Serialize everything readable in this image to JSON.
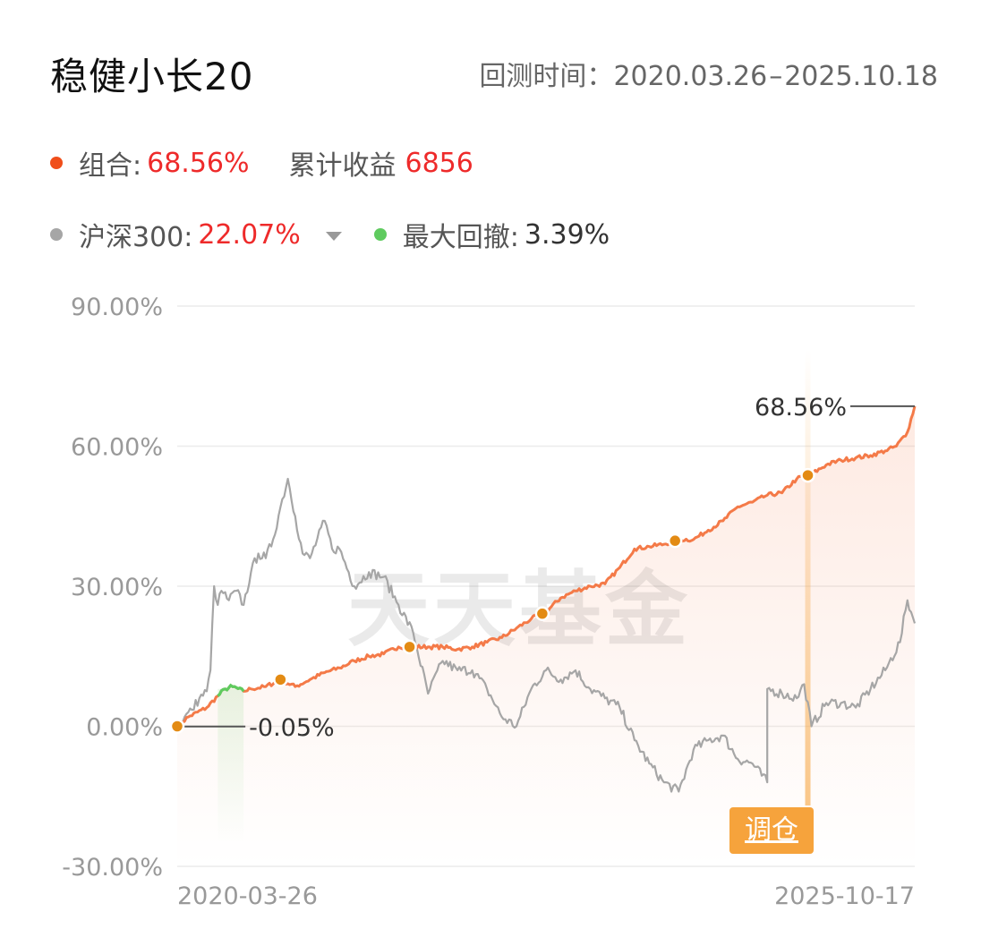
{
  "header": {
    "title": "稳健小长20",
    "period_label": "回测时间：",
    "period_start": "2020.03.26",
    "period_sep": "–",
    "period_end": "2025.10.18"
  },
  "legend": {
    "portfolio_label": "组合:",
    "portfolio_value": "68.56%",
    "cum_label": "累计收益",
    "cum_value": "6856",
    "benchmark_label": "沪深300:",
    "benchmark_value": "22.07%",
    "drawdown_label": "最大回撤:",
    "drawdown_value": "3.39%"
  },
  "colors": {
    "portfolio": "#f47a48",
    "portfolio_dot": "#f04e1a",
    "benchmark": "#a6a6a6",
    "drawdown": "#5fcb5f",
    "marker": "#e38b14",
    "rebalance": "#f6a33c",
    "value_red": "#ee2a2a"
  },
  "watermark": "天天基金",
  "rebalance_label": "调仓",
  "chart_data": {
    "type": "line",
    "title": "",
    "xlabel": "",
    "ylabel": "",
    "x_start": "2020-03-26",
    "x_end": "2025-10-17",
    "xtick_labels": [
      "2020-03-26",
      "2025-10-17"
    ],
    "ylim": [
      -30,
      90
    ],
    "yticks": [
      "90.00%",
      "60.00%",
      "30.00%",
      "0.00%",
      "-30.00%"
    ],
    "ytick_values": [
      90,
      60,
      30,
      0,
      -30
    ],
    "grid": true,
    "series": [
      {
        "name": "组合",
        "points": [
          [
            0,
            0
          ],
          [
            0.015,
            2
          ],
          [
            0.04,
            4
          ],
          [
            0.055,
            6.5
          ],
          [
            0.065,
            8
          ],
          [
            0.075,
            8.5
          ],
          [
            0.09,
            7.5
          ],
          [
            0.1,
            8
          ],
          [
            0.12,
            8.5
          ],
          [
            0.14,
            10
          ],
          [
            0.16,
            8.5
          ],
          [
            0.18,
            10
          ],
          [
            0.2,
            11.5
          ],
          [
            0.22,
            12.5
          ],
          [
            0.24,
            14
          ],
          [
            0.26,
            15
          ],
          [
            0.28,
            15.5
          ],
          [
            0.3,
            17
          ],
          [
            0.32,
            17
          ],
          [
            0.34,
            17
          ],
          [
            0.36,
            17
          ],
          [
            0.38,
            16.5
          ],
          [
            0.4,
            17
          ],
          [
            0.42,
            18
          ],
          [
            0.44,
            19
          ],
          [
            0.46,
            21
          ],
          [
            0.48,
            23
          ],
          [
            0.5,
            24.5
          ],
          [
            0.52,
            27.5
          ],
          [
            0.54,
            29
          ],
          [
            0.56,
            30
          ],
          [
            0.58,
            30.5
          ],
          [
            0.6,
            34
          ],
          [
            0.62,
            38
          ],
          [
            0.64,
            38.5
          ],
          [
            0.66,
            39
          ],
          [
            0.68,
            40
          ],
          [
            0.7,
            40
          ],
          [
            0.72,
            42
          ],
          [
            0.74,
            44
          ],
          [
            0.76,
            47
          ],
          [
            0.78,
            48
          ],
          [
            0.8,
            49.5
          ],
          [
            0.82,
            50
          ],
          [
            0.84,
            53
          ],
          [
            0.86,
            54
          ],
          [
            0.88,
            56
          ],
          [
            0.9,
            57
          ],
          [
            0.92,
            57.5
          ],
          [
            0.94,
            58
          ],
          [
            0.96,
            59
          ],
          [
            0.975,
            60
          ],
          [
            0.99,
            63
          ],
          [
            1.0,
            68.56
          ]
        ]
      },
      {
        "name": "沪深300",
        "points": [
          [
            0,
            0
          ],
          [
            0.01,
            2
          ],
          [
            0.02,
            3.5
          ],
          [
            0.03,
            6
          ],
          [
            0.04,
            7.5
          ],
          [
            0.045,
            12
          ],
          [
            0.05,
            30
          ],
          [
            0.055,
            26
          ],
          [
            0.06,
            29
          ],
          [
            0.07,
            27
          ],
          [
            0.08,
            29
          ],
          [
            0.09,
            26
          ],
          [
            0.1,
            33
          ],
          [
            0.11,
            37
          ],
          [
            0.12,
            36
          ],
          [
            0.13,
            40
          ],
          [
            0.14,
            47
          ],
          [
            0.15,
            53
          ],
          [
            0.16,
            45
          ],
          [
            0.17,
            37
          ],
          [
            0.18,
            36
          ],
          [
            0.2,
            44
          ],
          [
            0.21,
            38
          ],
          [
            0.22,
            38
          ],
          [
            0.24,
            30
          ],
          [
            0.26,
            33
          ],
          [
            0.28,
            32
          ],
          [
            0.3,
            26
          ],
          [
            0.32,
            20
          ],
          [
            0.34,
            7
          ],
          [
            0.36,
            14
          ],
          [
            0.38,
            12
          ],
          [
            0.4,
            12
          ],
          [
            0.42,
            8
          ],
          [
            0.44,
            2
          ],
          [
            0.46,
            0
          ],
          [
            0.48,
            8
          ],
          [
            0.5,
            12
          ],
          [
            0.52,
            10
          ],
          [
            0.54,
            12
          ],
          [
            0.56,
            8
          ],
          [
            0.58,
            6
          ],
          [
            0.6,
            4
          ],
          [
            0.62,
            -3
          ],
          [
            0.64,
            -8
          ],
          [
            0.66,
            -12
          ],
          [
            0.68,
            -14
          ],
          [
            0.7,
            -5
          ],
          [
            0.72,
            -3
          ],
          [
            0.74,
            -2
          ],
          [
            0.76,
            -7
          ],
          [
            0.78,
            -8
          ],
          [
            0.8,
            -12
          ],
          [
            0.8,
            8
          ],
          [
            0.82,
            7
          ],
          [
            0.84,
            6
          ],
          [
            0.85,
            9
          ],
          [
            0.86,
            0
          ],
          [
            0.88,
            5
          ],
          [
            0.9,
            5
          ],
          [
            0.92,
            4
          ],
          [
            0.94,
            8
          ],
          [
            0.96,
            12
          ],
          [
            0.98,
            18
          ],
          [
            0.99,
            27
          ],
          [
            1.0,
            22.07
          ]
        ]
      }
    ],
    "drawdown_segment": {
      "label": "最大回撤",
      "x_from": 0.055,
      "x_to": 0.09
    },
    "markers": [
      0,
      0.14,
      0.315,
      0.495,
      0.675,
      0.855
    ],
    "annotations": [
      {
        "text": "-0.05%",
        "x": 0.09,
        "y": -0.05
      },
      {
        "text": "68.56%",
        "x": 1.0,
        "y": 68.56
      }
    ],
    "rebalance_x": 0.855
  }
}
